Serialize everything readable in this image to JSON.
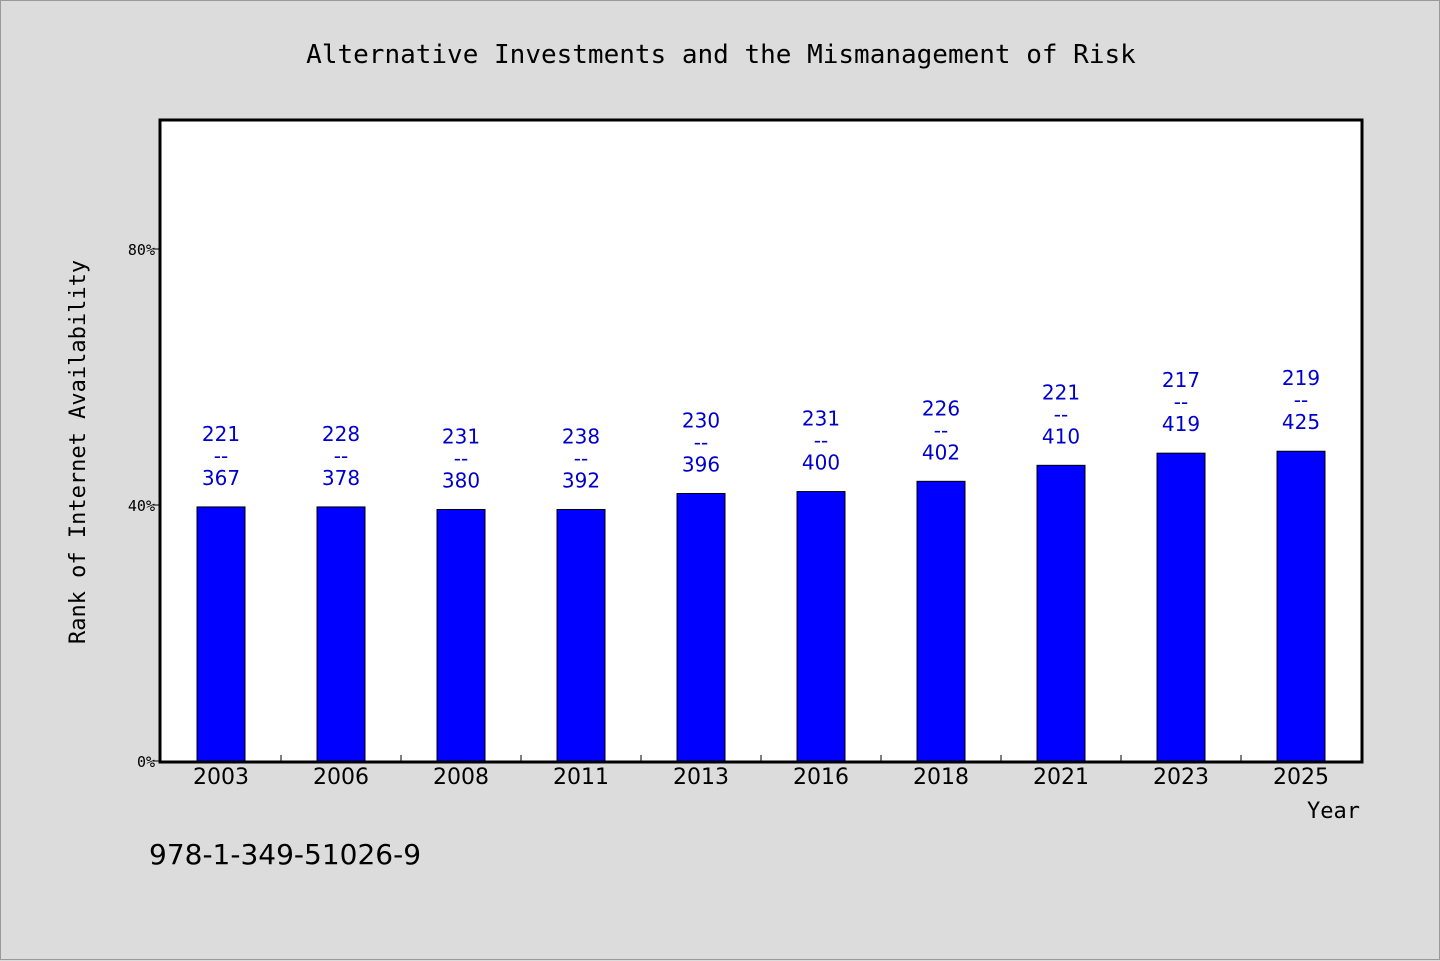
{
  "chart_data": {
    "type": "bar",
    "title": "Alternative Investments and the Mismanagement of Risk",
    "xlabel": "Year",
    "ylabel": "Rank of Internet Availability",
    "categories": [
      "2003",
      "2006",
      "2008",
      "2011",
      "2013",
      "2016",
      "2018",
      "2021",
      "2023",
      "2025"
    ],
    "values": [
      39.7,
      39.7,
      39.3,
      39.3,
      41.8,
      42.1,
      43.7,
      46.2,
      48.1,
      48.4
    ],
    "ylim": [
      0,
      100
    ],
    "yticks": [
      0,
      40,
      80
    ],
    "ytick_labels": [
      "0%",
      "40%",
      "80%"
    ],
    "data_labels": [
      {
        "top": "221",
        "sep": "--",
        "bottom": "367"
      },
      {
        "top": "228",
        "sep": "--",
        "bottom": "378"
      },
      {
        "top": "231",
        "sep": "--",
        "bottom": "380"
      },
      {
        "top": "238",
        "sep": "--",
        "bottom": "392"
      },
      {
        "top": "230",
        "sep": "--",
        "bottom": "396"
      },
      {
        "top": "231",
        "sep": "--",
        "bottom": "400"
      },
      {
        "top": "226",
        "sep": "--",
        "bottom": "402"
      },
      {
        "top": "221",
        "sep": "--",
        "bottom": "410"
      },
      {
        "top": "217",
        "sep": "--",
        "bottom": "419"
      },
      {
        "top": "219",
        "sep": "--",
        "bottom": "425"
      }
    ],
    "bar_color": "#0000ff",
    "label_color": "#0000cc",
    "grid": false,
    "legend": "none"
  },
  "footer": {
    "isbn": "978-1-349-51026-9"
  }
}
